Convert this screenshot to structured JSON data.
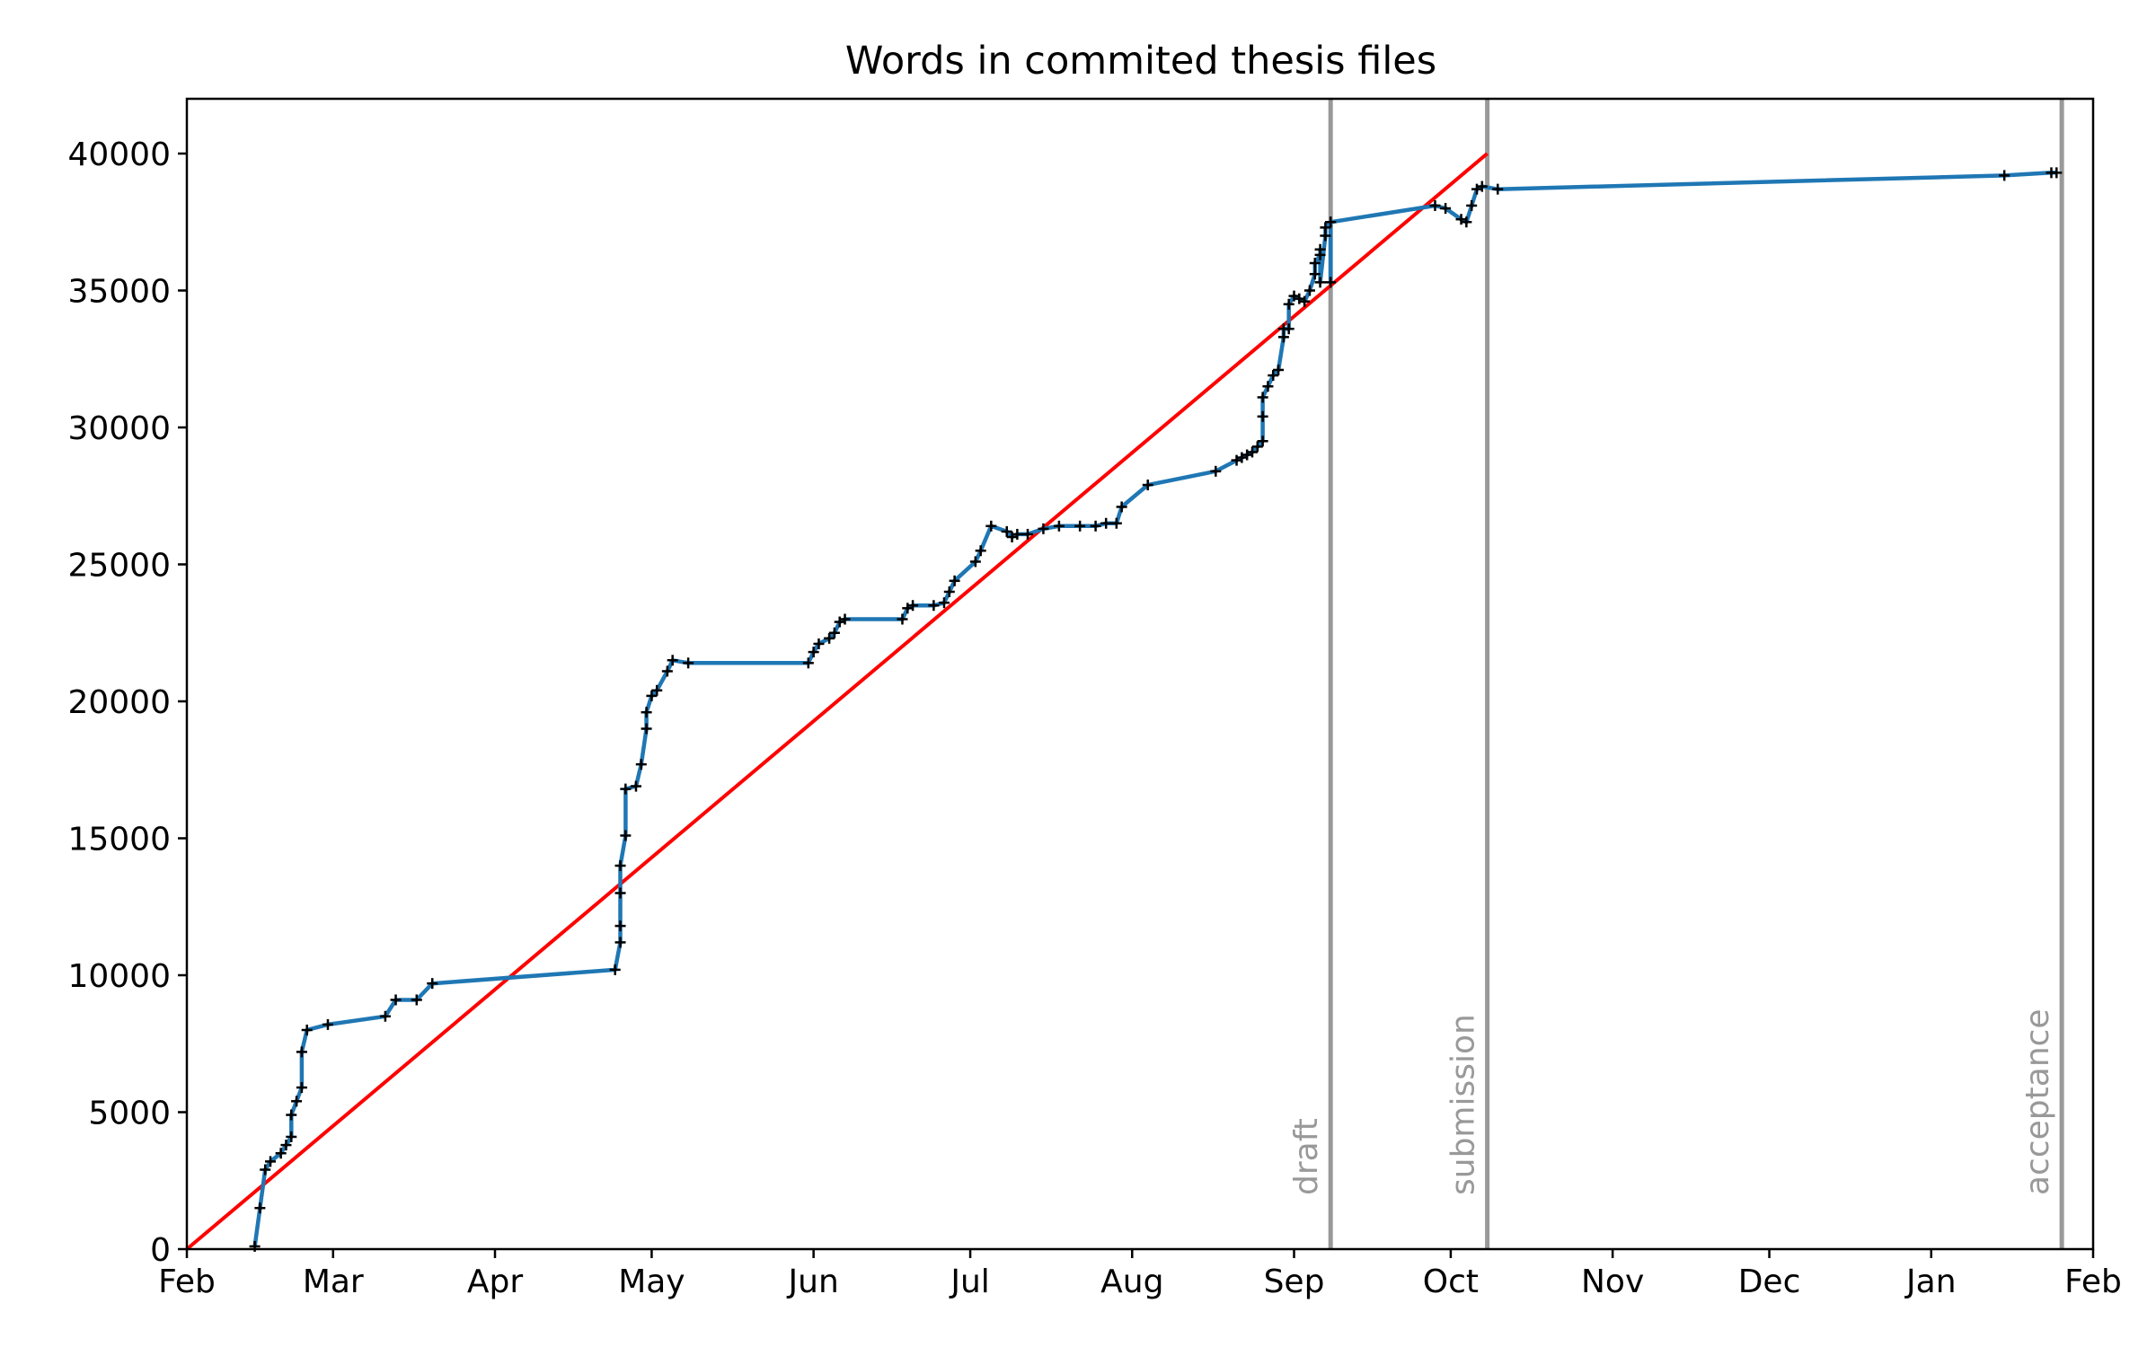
{
  "chart_data": {
    "type": "line",
    "title": "Words in commited thesis files",
    "xlabel": "",
    "ylabel": "",
    "grid": false,
    "x_axis": {
      "type": "date",
      "range": [
        "2018-02-01",
        "2019-02-01"
      ],
      "ticks": [
        {
          "date": "2018-02-01",
          "label": "Feb"
        },
        {
          "date": "2018-03-01",
          "label": "Mar"
        },
        {
          "date": "2018-04-01",
          "label": "Apr"
        },
        {
          "date": "2018-05-01",
          "label": "May"
        },
        {
          "date": "2018-06-01",
          "label": "Jun"
        },
        {
          "date": "2018-07-01",
          "label": "Jul"
        },
        {
          "date": "2018-08-01",
          "label": "Aug"
        },
        {
          "date": "2018-09-01",
          "label": "Sep"
        },
        {
          "date": "2018-10-01",
          "label": "Oct"
        },
        {
          "date": "2018-11-01",
          "label": "Nov"
        },
        {
          "date": "2018-12-01",
          "label": "Dec"
        },
        {
          "date": "2019-01-01",
          "label": "Jan"
        },
        {
          "date": "2019-02-01",
          "label": "Feb"
        }
      ]
    },
    "y_axis": {
      "range": [
        0,
        42000
      ],
      "ticks": [
        0,
        5000,
        10000,
        15000,
        20000,
        25000,
        30000,
        35000,
        40000
      ],
      "tick_labels": [
        "0",
        "5000",
        "10000",
        "15000",
        "20000",
        "25000",
        "30000",
        "35000",
        "40000"
      ]
    },
    "events": [
      {
        "date": "2018-09-08",
        "label": "draft",
        "color": "#999999"
      },
      {
        "date": "2018-10-08",
        "label": "submission",
        "color": "#999999"
      },
      {
        "date": "2019-01-26",
        "label": "acceptance",
        "color": "#999999"
      }
    ],
    "target_line": {
      "color": "#ff0000",
      "points": [
        {
          "date": "2018-02-01",
          "y": 0
        },
        {
          "date": "2018-10-08",
          "y": 40000
        }
      ]
    },
    "series": [
      {
        "color": "#1f77b4",
        "marker": "+",
        "marker_color": "#000000",
        "points": [
          [
            "2018-02-14",
            100
          ],
          [
            "2018-02-15",
            1500
          ],
          [
            "2018-02-16",
            2900
          ],
          [
            "2018-02-17",
            3200
          ],
          [
            "2018-02-19",
            3500
          ],
          [
            "2018-02-20",
            3800
          ],
          [
            "2018-02-21",
            4100
          ],
          [
            "2018-02-21",
            4900
          ],
          [
            "2018-02-22",
            5400
          ],
          [
            "2018-02-23",
            5900
          ],
          [
            "2018-02-23",
            7200
          ],
          [
            "2018-02-24",
            8000
          ],
          [
            "2018-02-28",
            8200
          ],
          [
            "2018-03-11",
            8500
          ],
          [
            "2018-03-13",
            9100
          ],
          [
            "2018-03-17",
            9100
          ],
          [
            "2018-03-20",
            9700
          ],
          [
            "2018-04-24",
            10200
          ],
          [
            "2018-04-25",
            11200
          ],
          [
            "2018-04-25",
            11800
          ],
          [
            "2018-04-25",
            13000
          ],
          [
            "2018-04-25",
            14000
          ],
          [
            "2018-04-26",
            15100
          ],
          [
            "2018-04-26",
            16800
          ],
          [
            "2018-04-28",
            16900
          ],
          [
            "2018-04-29",
            17700
          ],
          [
            "2018-04-30",
            19000
          ],
          [
            "2018-04-30",
            19600
          ],
          [
            "2018-05-01",
            20200
          ],
          [
            "2018-05-02",
            20400
          ],
          [
            "2018-05-04",
            21100
          ],
          [
            "2018-05-05",
            21500
          ],
          [
            "2018-05-08",
            21400
          ],
          [
            "2018-05-31",
            21400
          ],
          [
            "2018-06-01",
            21800
          ],
          [
            "2018-06-02",
            22100
          ],
          [
            "2018-06-04",
            22300
          ],
          [
            "2018-06-05",
            22500
          ],
          [
            "2018-06-06",
            22900
          ],
          [
            "2018-06-07",
            23000
          ],
          [
            "2018-06-18",
            23000
          ],
          [
            "2018-06-19",
            23400
          ],
          [
            "2018-06-20",
            23500
          ],
          [
            "2018-06-24",
            23500
          ],
          [
            "2018-06-26",
            23600
          ],
          [
            "2018-06-27",
            24000
          ],
          [
            "2018-06-28",
            24400
          ],
          [
            "2018-07-02",
            25100
          ],
          [
            "2018-07-03",
            25500
          ],
          [
            "2018-07-05",
            26400
          ],
          [
            "2018-07-08",
            26200
          ],
          [
            "2018-07-09",
            26000
          ],
          [
            "2018-07-10",
            26100
          ],
          [
            "2018-07-12",
            26100
          ],
          [
            "2018-07-15",
            26300
          ],
          [
            "2018-07-18",
            26400
          ],
          [
            "2018-07-22",
            26400
          ],
          [
            "2018-07-25",
            26400
          ],
          [
            "2018-07-27",
            26500
          ],
          [
            "2018-07-29",
            26500
          ],
          [
            "2018-07-30",
            27100
          ],
          [
            "2018-08-04",
            27900
          ],
          [
            "2018-08-17",
            28400
          ],
          [
            "2018-08-21",
            28800
          ],
          [
            "2018-08-22",
            28900
          ],
          [
            "2018-08-23",
            29000
          ],
          [
            "2018-08-24",
            29100
          ],
          [
            "2018-08-25",
            29300
          ],
          [
            "2018-08-26",
            29500
          ],
          [
            "2018-08-26",
            30400
          ],
          [
            "2018-08-26",
            31100
          ],
          [
            "2018-08-27",
            31500
          ],
          [
            "2018-08-28",
            31900
          ],
          [
            "2018-08-29",
            32100
          ],
          [
            "2018-08-30",
            33300
          ],
          [
            "2018-08-30",
            33600
          ],
          [
            "2018-08-31",
            33600
          ],
          [
            "2018-08-31",
            34500
          ],
          [
            "2018-09-01",
            34800
          ],
          [
            "2018-09-02",
            34700
          ],
          [
            "2018-09-03",
            34600
          ],
          [
            "2018-09-04",
            35000
          ],
          [
            "2018-09-05",
            35600
          ],
          [
            "2018-09-05",
            36000
          ],
          [
            "2018-09-06",
            36300
          ],
          [
            "2018-09-06",
            36500
          ],
          [
            "2018-09-06",
            35300
          ],
          [
            "2018-09-07",
            37000
          ],
          [
            "2018-09-07",
            37300
          ],
          [
            "2018-09-08",
            37500
          ],
          [
            "2018-09-08",
            35300
          ],
          [
            "2018-09-08",
            37500
          ],
          [
            "2018-09-28",
            38100
          ],
          [
            "2018-09-30",
            38000
          ],
          [
            "2018-10-03",
            37600
          ],
          [
            "2018-10-04",
            37500
          ],
          [
            "2018-10-05",
            38100
          ],
          [
            "2018-10-06",
            38700
          ],
          [
            "2018-10-07",
            38800
          ],
          [
            "2018-10-10",
            38700
          ],
          [
            "2019-01-15",
            39200
          ],
          [
            "2019-01-24",
            39300
          ],
          [
            "2019-01-25",
            39300
          ]
        ]
      }
    ]
  }
}
